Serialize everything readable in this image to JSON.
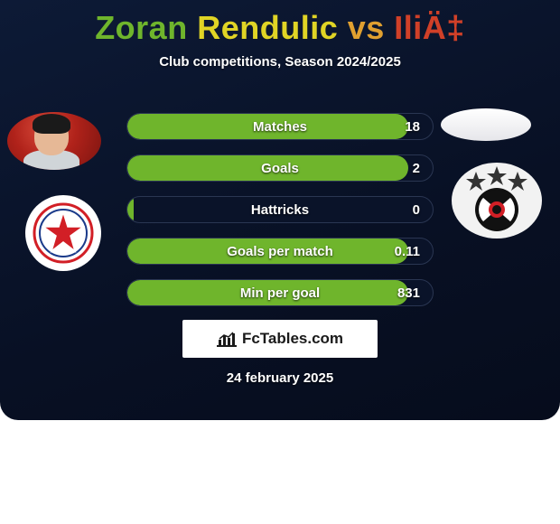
{
  "title_parts": {
    "player1_first": "Zoran",
    "player1_last": "Rendulic",
    "vs": " vs ",
    "player2": "IliÄ‡"
  },
  "title_colors": {
    "player1_first": "#6fb52c",
    "player1_last": "#e0d425",
    "vs": "#e0a030",
    "player2": "#d04028"
  },
  "subtitle": "Club competitions, Season 2024/2025",
  "stats": [
    {
      "label": "Matches",
      "value": "18",
      "fill_pct": 92,
      "fill_color": "#6fb52c"
    },
    {
      "label": "Goals",
      "value": "2",
      "fill_pct": 92,
      "fill_color": "#6fb52c"
    },
    {
      "label": "Hattricks",
      "value": "0",
      "fill_pct": 2,
      "fill_color": "#6fb52c"
    },
    {
      "label": "Goals per match",
      "value": "0.11",
      "fill_pct": 92,
      "fill_color": "#6fb52c"
    },
    {
      "label": "Min per goal",
      "value": "831",
      "fill_pct": 92,
      "fill_color": "#6fb52c"
    }
  ],
  "brand": "FcTables.com",
  "date": "24 february 2025",
  "colors": {
    "card_bg_top": "#0d1a36",
    "card_bg_bottom": "#060c1c",
    "stat_track": "#0a1329",
    "stat_border": "#2a3652",
    "text": "#ffffff",
    "brand_bg": "#ffffff",
    "brand_text": "#1a1a1a"
  },
  "club_left": {
    "name": "crvena-zvezda",
    "star_color": "#d21f26",
    "ring_color": "#d21f26"
  },
  "club_right": {
    "name": "partizan",
    "disc_outer": "#111111",
    "disc_inner": "#d21f26",
    "star_color": "#333333"
  }
}
